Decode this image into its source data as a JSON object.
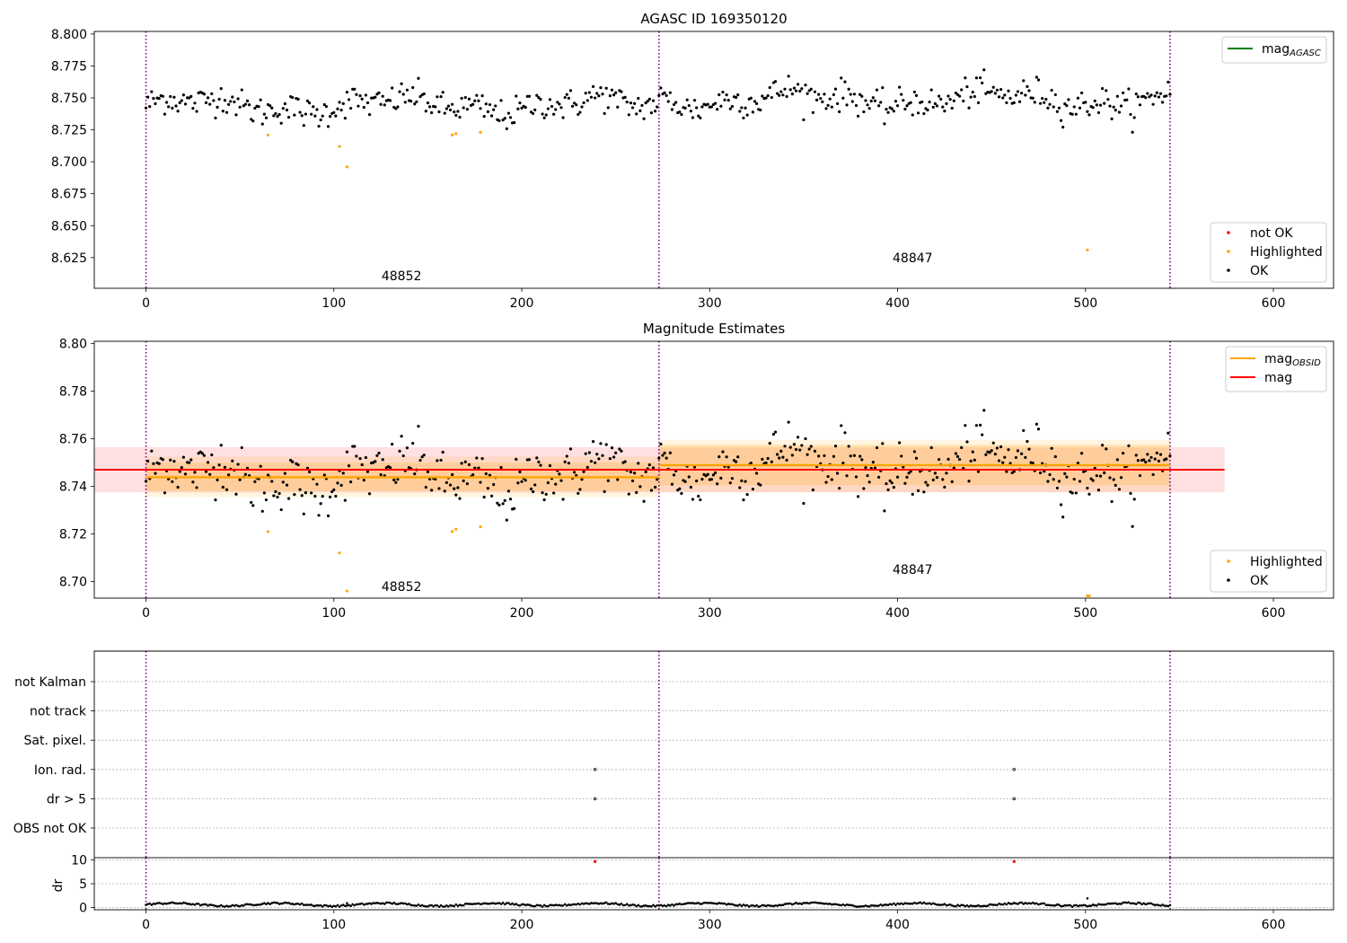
{
  "chart_data": [
    {
      "type": "scatter",
      "title": "AGASC ID 169350120",
      "xlim": [
        -27.5,
        632
      ],
      "ylim": [
        8.601,
        8.802
      ],
      "xticks": [
        0,
        100,
        200,
        300,
        400,
        500,
        600
      ],
      "yticks": [
        8.625,
        8.65,
        8.675,
        8.7,
        8.725,
        8.75,
        8.775,
        8.8
      ],
      "vlines": [
        0,
        273,
        545
      ],
      "obsids": [
        {
          "label": "48852",
          "x": 136,
          "y": 8.611
        },
        {
          "label": "48847",
          "x": 408,
          "y": 8.625
        }
      ],
      "legend_top": [
        {
          "label": "mag",
          "sub": "AGASC",
          "color": "#008000",
          "kind": "line"
        }
      ],
      "legend_bottom": [
        {
          "label": "not OK",
          "color": "#ff0000",
          "kind": "dot"
        },
        {
          "label": "Highlighted",
          "color": "#ffa500",
          "kind": "dot"
        },
        {
          "label": "OK",
          "color": "#000000",
          "kind": "dot"
        }
      ],
      "grid": false,
      "series": [
        {
          "name": "OK",
          "color": "#000000",
          "x_range": [
            0,
            545
          ],
          "mean_segments": [
            [
              0,
              273,
              8.744
            ],
            [
              273,
              545,
              8.749
            ]
          ],
          "noise": 0.0075
        },
        {
          "name": "Highlighted",
          "color": "#ffa500",
          "points": [
            [
              65,
              8.721
            ],
            [
              103,
              8.712
            ],
            [
              107,
              8.696
            ],
            [
              163,
              8.721
            ],
            [
              165,
              8.722
            ],
            [
              178,
              8.723
            ],
            [
              501,
              8.631
            ]
          ]
        }
      ]
    },
    {
      "type": "scatter",
      "title": "Magnitude Estimates",
      "xlim": [
        -27.5,
        632
      ],
      "ylim": [
        8.693,
        8.801
      ],
      "xticks": [
        0,
        100,
        200,
        300,
        400,
        500,
        600
      ],
      "yticks": [
        8.7,
        8.72,
        8.74,
        8.76,
        8.78,
        8.8
      ],
      "ytick_labels": [
        "8.70",
        "8.72",
        "8.74",
        "8.76",
        "8.78",
        "8.80"
      ],
      "vlines": [
        0,
        273,
        545
      ],
      "obsids": [
        {
          "label": "48852",
          "x": 136,
          "y": 8.698
        },
        {
          "label": "48847",
          "x": 408,
          "y": 8.705
        }
      ],
      "mag": {
        "value": 8.747,
        "x_range": [
          -27.5,
          574
        ],
        "band": [
          8.7375,
          8.7565
        ],
        "color": "#ff0000"
      },
      "mag_obsid": [
        {
          "x": [
            0,
            273
          ],
          "value": 8.7438,
          "band_outer": [
            8.7355,
            8.7525
          ],
          "band_inner": [
            8.738,
            8.75
          ]
        },
        {
          "x": [
            273,
            545
          ],
          "value": 8.7489,
          "band_outer": [
            8.7375,
            8.7595
          ],
          "band_inner": [
            8.7405,
            8.7575
          ]
        }
      ],
      "legend_top": [
        {
          "label": "mag",
          "sub": "OBSID",
          "color": "#ffa500",
          "kind": "line"
        },
        {
          "label": "mag",
          "sub": "",
          "color": "#ff0000",
          "kind": "line"
        }
      ],
      "legend_bottom": [
        {
          "label": "Highlighted",
          "color": "#ffa500",
          "kind": "dot"
        },
        {
          "label": "OK",
          "color": "#000000",
          "kind": "dot"
        }
      ],
      "grid": false,
      "series": [
        {
          "name": "OK",
          "color": "#000000",
          "x_range": [
            0,
            545
          ],
          "mean_segments": [
            [
              0,
              273,
              8.744
            ],
            [
              273,
              545,
              8.749
            ]
          ],
          "noise": 0.0075
        },
        {
          "name": "Highlighted",
          "color": "#ffa500",
          "points": [
            [
              65,
              8.721
            ],
            [
              103,
              8.712
            ],
            [
              107,
              8.696
            ],
            [
              163,
              8.721
            ],
            [
              165,
              8.722
            ],
            [
              178,
              8.723
            ],
            [
              501,
              8.694
            ],
            [
              502,
              8.694
            ]
          ]
        }
      ]
    },
    {
      "type": "scatter",
      "title": "",
      "xlim": [
        -27.5,
        632
      ],
      "categories": [
        "not Kalman",
        "not track",
        "Sat. pixel.",
        "Ion. rad.",
        "dr > 5",
        "OBS not OK"
      ],
      "flag_points": [
        {
          "category": "Ion. rad.",
          "x": 239
        },
        {
          "category": "dr > 5",
          "x": 239
        },
        {
          "category": "Ion. rad.",
          "x": 462
        },
        {
          "category": "dr > 5",
          "x": 462
        }
      ],
      "vlines": [
        0,
        273,
        545
      ],
      "grid": true
    },
    {
      "type": "scatter",
      "title": "",
      "ylabel": "dr",
      "xlim": [
        -27.5,
        632
      ],
      "ylim": [
        -0.5,
        10.5
      ],
      "xticks": [
        0,
        100,
        200,
        300,
        400,
        500,
        600
      ],
      "yticks": [
        0,
        5,
        10
      ],
      "vlines": [
        0,
        273,
        545
      ],
      "grid": true,
      "red_points": [
        [
          239,
          9.7
        ],
        [
          462,
          9.7
        ]
      ],
      "outliers": [
        [
          107,
          0.9
        ],
        [
          501,
          1.9
        ]
      ],
      "series": [
        {
          "name": "dr",
          "color": "#000000",
          "x_range": [
            0,
            545
          ],
          "base": 0.6,
          "noise": 0.35
        }
      ]
    }
  ]
}
